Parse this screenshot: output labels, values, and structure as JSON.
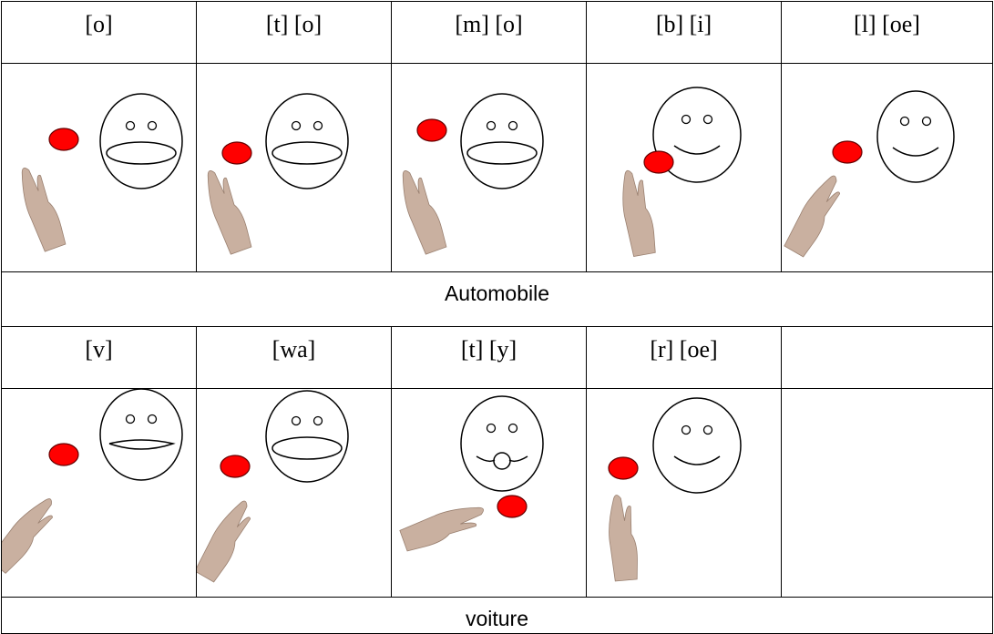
{
  "rows": [
    {
      "syllables": [
        "[o]",
        "[t] [o]",
        "[m] [o]",
        "[b] [i]",
        "[l] [oe]"
      ],
      "word": "Automobile"
    },
    {
      "syllables": [
        "[v]",
        "[wa]",
        "[t] [y]",
        "[r] [oe]"
      ],
      "word": "voiture"
    }
  ]
}
